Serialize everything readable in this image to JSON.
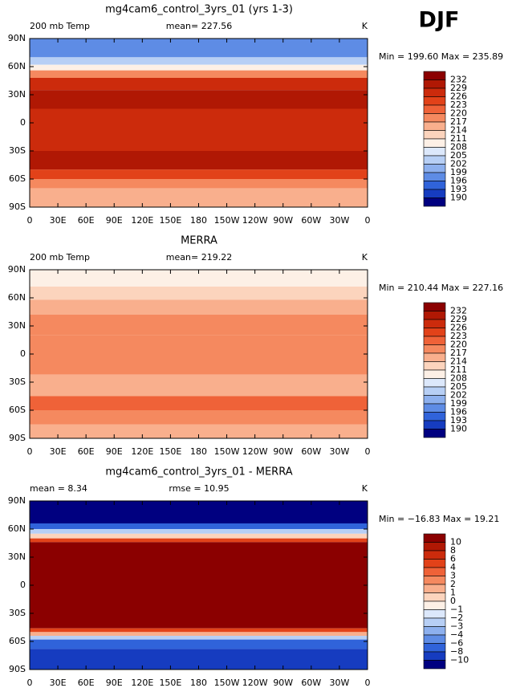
{
  "season": "DJF",
  "palette": [
    "#8b0000",
    "#b01804",
    "#cc2b0c",
    "#e24219",
    "#ef6238",
    "#f5895f",
    "#f9af8d",
    "#fcd4bd",
    "#fdf0e6",
    "#dce8fb",
    "#b7cff5",
    "#8db0ee",
    "#5e8ce5",
    "#3063da",
    "#163cc0",
    "#000080"
  ],
  "lat_ticks": [
    "90N",
    "60N",
    "30N",
    "0",
    "30S",
    "60S",
    "90S"
  ],
  "lon_ticks": [
    "0",
    "30E",
    "60E",
    "90E",
    "120E",
    "150E",
    "180",
    "150W",
    "120W",
    "90W",
    "60W",
    "30W",
    "0"
  ],
  "panels": [
    {
      "title": "mg4cam6_control_3yrs_01 (yrs 1-3)",
      "left_label": "200 mb Temp",
      "center_label": "mean= 227.56",
      "right_label": "K",
      "minmax": "Min = 199.60 Max = 235.89",
      "colorbar_labels": [
        "232",
        "229",
        "226",
        "223",
        "220",
        "217",
        "214",
        "211",
        "208",
        "205",
        "202",
        "199",
        "196",
        "193",
        "190"
      ]
    },
    {
      "title": "MERRA",
      "left_label": "200 mb Temp",
      "center_label": "mean= 219.22",
      "right_label": "K",
      "minmax": "Min = 210.44 Max = 227.16",
      "colorbar_labels": [
        "232",
        "229",
        "226",
        "223",
        "220",
        "217",
        "214",
        "211",
        "208",
        "205",
        "202",
        "199",
        "196",
        "193",
        "190"
      ]
    },
    {
      "title": "mg4cam6_control_3yrs_01 - MERRA",
      "left_label": "mean =   8.34",
      "center_label": "rmse =   10.95",
      "right_label": "K",
      "minmax": "Min = −16.83 Max =  19.21",
      "colorbar_labels": [
        "10",
        "8",
        "6",
        "4",
        "3",
        "2",
        "1",
        "0",
        "−1",
        "−2",
        "−3",
        "−4",
        "−6",
        "−8",
        "−10"
      ]
    }
  ]
}
